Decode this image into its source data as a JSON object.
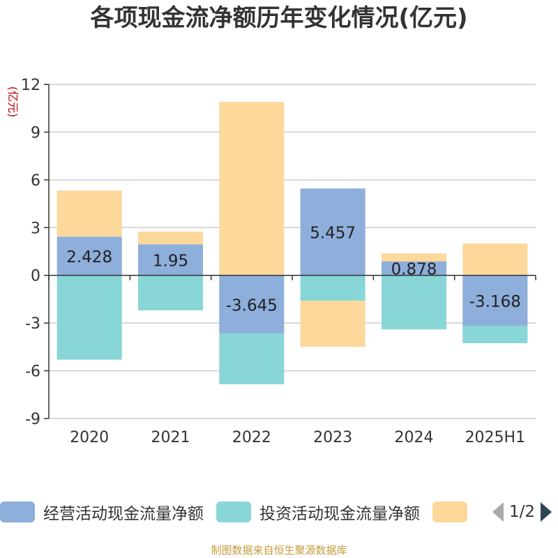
{
  "title": "各项现金流净额历年变化情况(亿元)",
  "source": "制图数据来自恒生聚源数据库",
  "chart_data": {
    "type": "bar",
    "stacked": true,
    "categories": [
      "2020",
      "2021",
      "2022",
      "2023",
      "2024",
      "2025H1"
    ],
    "ylabel": "(亿元)",
    "ylim": [
      -9,
      12
    ],
    "yticks": [
      -9,
      -6,
      -3,
      0,
      3,
      6,
      9,
      12
    ],
    "grid": true,
    "legend_position": "bottom",
    "series": [
      {
        "name": "经营活动现金流量净额",
        "color": "#8eaedb",
        "values": [
          2.428,
          1.95,
          -3.645,
          5.457,
          0.878,
          -3.168
        ],
        "show_labels": true
      },
      {
        "name": "投资活动现金流量净额",
        "color": "#88d6d8",
        "values": [
          -5.3,
          -2.2,
          -3.2,
          -1.6,
          -3.4,
          -1.1
        ],
        "show_labels": false
      },
      {
        "name": "",
        "color": "#fdd89b",
        "values": [
          2.9,
          0.8,
          10.9,
          -2.9,
          0.5,
          2.0
        ],
        "show_labels": false
      }
    ]
  },
  "legend": {
    "items": [
      {
        "label": "经营活动现金流量净额",
        "color": "#8eaedb"
      },
      {
        "label": "投资活动现金流量净额",
        "color": "#88d6d8"
      },
      {
        "label": "",
        "color": "#fdd89b"
      }
    ],
    "page_indicator": "1/2",
    "prev_icon": "triangle-left-icon",
    "next_icon": "triangle-right-icon"
  }
}
